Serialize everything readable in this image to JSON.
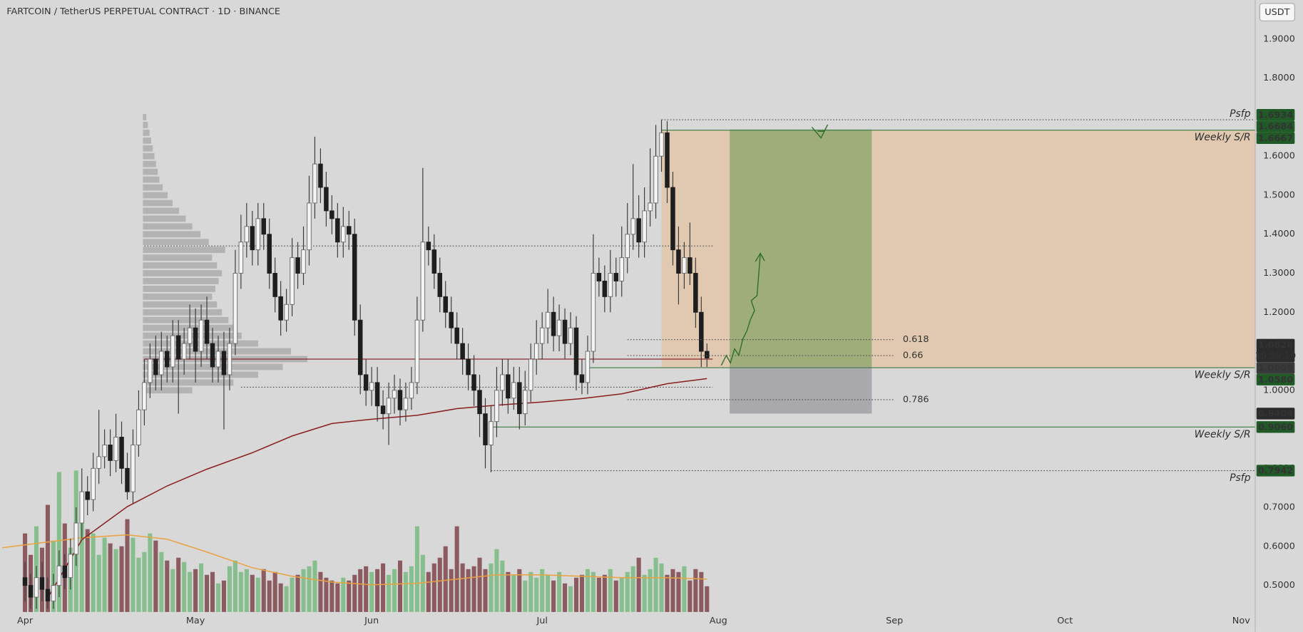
{
  "chart_data": {
    "type": "candlestick",
    "title": "FARTCOIN / TetherUS PERPETUAL CONTRACT · 1D · BINANCE",
    "currency": "USDT",
    "xlim": [
      -4.4,
      216.4
    ],
    "xticks": [
      {
        "value": 0,
        "label": "Apr"
      },
      {
        "value": 30,
        "label": "May"
      },
      {
        "value": 61,
        "label": "Jun"
      },
      {
        "value": 91,
        "label": "Jul"
      },
      {
        "value": 122,
        "label": "Aug"
      },
      {
        "value": 153,
        "label": "Sep"
      },
      {
        "value": 183,
        "label": "Oct"
      },
      {
        "value": 214,
        "label": "Nov"
      }
    ],
    "ylim": [
      0.432,
      2.0
    ],
    "yticks": [
      {
        "value": 0.5,
        "label": "0.5000"
      },
      {
        "value": 0.6,
        "label": "0.6000"
      },
      {
        "value": 0.7,
        "label": "0.7000"
      },
      {
        "value": 0.8,
        "label": "0.8000"
      },
      {
        "value": 0.9,
        "label": "0.9000"
      },
      {
        "value": 1.0,
        "label": "1.0000"
      },
      {
        "value": 1.1,
        "label": "1.1000"
      },
      {
        "value": 1.2,
        "label": "1.2000"
      },
      {
        "value": 1.3,
        "label": "1.3000"
      },
      {
        "value": 1.4,
        "label": "1.4000"
      },
      {
        "value": 1.5,
        "label": "1.5000"
      },
      {
        "value": 1.6,
        "label": "1.6000"
      },
      {
        "value": 1.7,
        "label": "1.7000"
      },
      {
        "value": 1.8,
        "label": "1.8000"
      },
      {
        "value": 1.9,
        "label": "1.9000"
      }
    ],
    "grid": false,
    "candles": {
      "up_color": "#f4f4f4",
      "down_color": "#1e1e1e",
      "wick_color": "#3a3a3a",
      "open": [
        0.52,
        0.5,
        0.47,
        0.52,
        0.49,
        0.46,
        0.5,
        0.55,
        0.52,
        0.58,
        0.66,
        0.74,
        0.72,
        0.8,
        0.83,
        0.86,
        0.82,
        0.88,
        0.8,
        0.74,
        0.86,
        0.95,
        1.02,
        1.08,
        1.04,
        1.1,
        1.06,
        1.14,
        1.08,
        1.12,
        1.16,
        1.1,
        1.18,
        1.12,
        1.06,
        1.1,
        1.04,
        1.12,
        1.3,
        1.38,
        1.42,
        1.36,
        1.44,
        1.4,
        1.3,
        1.24,
        1.18,
        1.22,
        1.34,
        1.3,
        1.36,
        1.48,
        1.58,
        1.52,
        1.46,
        1.44,
        1.38,
        1.42,
        1.4,
        1.18,
        1.04,
        1.0,
        1.02,
        0.96,
        0.94,
        0.98,
        1.0,
        0.95,
        0.98,
        1.02,
        1.18,
        1.38,
        1.36,
        1.3,
        1.24,
        1.2,
        1.16,
        1.12,
        1.08,
        1.04,
        1.0,
        0.94,
        0.86,
        0.92,
        1.0,
        1.04,
        0.98,
        1.02,
        0.94,
        1.0,
        1.08,
        1.12,
        1.16,
        1.2,
        1.14,
        1.18,
        1.12,
        1.16,
        1.04,
        1.02,
        1.1,
        1.3,
        1.28,
        1.24,
        1.3,
        1.28,
        1.34,
        1.4,
        1.44,
        1.38,
        1.46,
        1.48,
        1.6,
        1.66,
        1.52,
        1.36,
        1.3,
        1.34,
        1.3,
        1.2,
        1.1
      ],
      "high": [
        0.56,
        0.53,
        0.55,
        0.56,
        0.52,
        0.53,
        0.59,
        0.58,
        0.62,
        0.7,
        0.8,
        0.78,
        0.84,
        0.95,
        0.9,
        0.9,
        0.94,
        0.92,
        0.84,
        0.9,
        1.0,
        1.08,
        1.12,
        1.14,
        1.15,
        1.14,
        1.18,
        1.18,
        1.16,
        1.22,
        1.21,
        1.22,
        1.24,
        1.16,
        1.14,
        1.15,
        1.16,
        1.36,
        1.45,
        1.48,
        1.46,
        1.48,
        1.48,
        1.44,
        1.34,
        1.28,
        1.26,
        1.39,
        1.38,
        1.42,
        1.55,
        1.65,
        1.62,
        1.56,
        1.5,
        1.48,
        1.47,
        1.46,
        1.44,
        1.22,
        1.08,
        1.06,
        1.06,
        1.0,
        1.02,
        1.04,
        1.03,
        1.02,
        1.06,
        1.24,
        1.57,
        1.42,
        1.4,
        1.34,
        1.28,
        1.24,
        1.2,
        1.16,
        1.12,
        1.09,
        1.04,
        0.98,
        0.96,
        1.06,
        1.08,
        1.08,
        1.06,
        1.06,
        1.05,
        1.12,
        1.18,
        1.2,
        1.26,
        1.24,
        1.22,
        1.21,
        1.2,
        1.19,
        1.08,
        1.14,
        1.4,
        1.34,
        1.32,
        1.36,
        1.34,
        1.42,
        1.48,
        1.58,
        1.5,
        1.52,
        1.62,
        1.68,
        1.6934,
        1.69,
        1.56,
        1.42,
        1.38,
        1.43,
        1.34,
        1.24,
        1.12
      ],
      "low": [
        0.46,
        0.44,
        0.44,
        0.46,
        0.44,
        0.44,
        0.47,
        0.49,
        0.49,
        0.55,
        0.62,
        0.68,
        0.69,
        0.76,
        0.8,
        0.78,
        0.79,
        0.76,
        0.72,
        0.71,
        0.83,
        0.91,
        0.98,
        1.0,
        1.0,
        1.02,
        1.02,
        0.94,
        1.04,
        1.08,
        1.02,
        1.06,
        1.08,
        1.02,
        1.02,
        0.9,
        1.0,
        1.09,
        1.26,
        1.34,
        1.32,
        1.32,
        1.36,
        1.26,
        1.2,
        1.14,
        1.15,
        1.19,
        1.26,
        1.27,
        1.32,
        1.44,
        1.48,
        1.42,
        1.4,
        1.34,
        1.34,
        1.36,
        1.14,
        0.99,
        0.96,
        0.96,
        0.92,
        0.9,
        0.86,
        0.94,
        0.91,
        0.92,
        0.95,
        0.99,
        1.15,
        1.32,
        1.26,
        1.2,
        1.16,
        1.12,
        1.08,
        1.04,
        1.0,
        0.96,
        0.88,
        0.8,
        0.79,
        0.88,
        0.96,
        0.94,
        0.95,
        0.9,
        0.91,
        0.97,
        1.04,
        1.08,
        1.12,
        1.1,
        1.1,
        1.08,
        1.09,
        1.0,
        0.99,
        0.99,
        1.07,
        1.24,
        1.2,
        1.2,
        1.24,
        1.24,
        1.3,
        1.36,
        1.34,
        1.34,
        1.42,
        1.44,
        1.56,
        1.48,
        1.32,
        1.22,
        1.26,
        1.27,
        1.16,
        1.06,
        1.06
      ],
      "close": [
        0.5,
        0.47,
        0.52,
        0.49,
        0.46,
        0.5,
        0.55,
        0.52,
        0.58,
        0.66,
        0.74,
        0.72,
        0.8,
        0.83,
        0.86,
        0.82,
        0.88,
        0.8,
        0.74,
        0.86,
        0.95,
        1.02,
        1.08,
        1.04,
        1.1,
        1.06,
        1.14,
        1.08,
        1.12,
        1.16,
        1.1,
        1.18,
        1.12,
        1.06,
        1.1,
        1.04,
        1.12,
        1.3,
        1.38,
        1.42,
        1.36,
        1.44,
        1.4,
        1.3,
        1.24,
        1.18,
        1.22,
        1.34,
        1.3,
        1.36,
        1.48,
        1.58,
        1.52,
        1.46,
        1.44,
        1.38,
        1.42,
        1.4,
        1.18,
        1.04,
        1.0,
        1.02,
        0.96,
        0.94,
        0.98,
        1.0,
        0.95,
        0.98,
        1.02,
        1.18,
        1.38,
        1.36,
        1.3,
        1.24,
        1.2,
        1.16,
        1.12,
        1.08,
        1.04,
        1.0,
        0.94,
        0.86,
        0.92,
        1.0,
        1.04,
        0.98,
        1.02,
        0.94,
        1.0,
        1.08,
        1.12,
        1.16,
        1.2,
        1.14,
        1.18,
        1.12,
        1.16,
        1.04,
        1.02,
        1.1,
        1.3,
        1.28,
        1.24,
        1.3,
        1.28,
        1.34,
        1.4,
        1.44,
        1.38,
        1.46,
        1.48,
        1.6,
        1.66,
        1.52,
        1.36,
        1.3,
        1.34,
        1.3,
        1.2,
        1.1,
        1.0828
      ]
    },
    "volume": {
      "vlim": [
        0,
        100
      ],
      "up_color": "#86bf8d",
      "down_color": "#8b5b60",
      "values": [
        55,
        40,
        60,
        45,
        75,
        50,
        98,
        62,
        45,
        99,
        70,
        58,
        55,
        40,
        52,
        48,
        44,
        46,
        65,
        52,
        38,
        42,
        55,
        50,
        42,
        36,
        30,
        38,
        35,
        28,
        30,
        34,
        26,
        28,
        20,
        22,
        32,
        36,
        28,
        30,
        26,
        24,
        30,
        22,
        28,
        20,
        18,
        24,
        26,
        30,
        32,
        36,
        28,
        24,
        22,
        20,
        24,
        22,
        26,
        30,
        32,
        28,
        30,
        34,
        26,
        30,
        36,
        28,
        32,
        60,
        40,
        28,
        34,
        38,
        46,
        30,
        60,
        34,
        30,
        32,
        38,
        30,
        34,
        44,
        36,
        28,
        26,
        30,
        22,
        28,
        24,
        30,
        26,
        22,
        28,
        20,
        18,
        24,
        26,
        30,
        28,
        24,
        26,
        30,
        22,
        24,
        28,
        32,
        38,
        26,
        30,
        38,
        34,
        26,
        30,
        28,
        32,
        22,
        30,
        28,
        18
      ]
    },
    "volume_ma": {
      "color": "#e9a23f",
      "x": [
        -4,
        10,
        18,
        25,
        32,
        40,
        47,
        54,
        61,
        69,
        76,
        83,
        91,
        98,
        105,
        113,
        120
      ],
      "values": [
        45,
        52,
        54,
        51,
        42,
        31,
        25,
        21,
        19,
        20,
        23,
        26,
        26,
        25,
        24,
        24,
        23
      ]
    },
    "ema": {
      "color": "#8b1e1e",
      "x": [
        4,
        10,
        18,
        25,
        32,
        40,
        47,
        54,
        61,
        69,
        76,
        83,
        91,
        98,
        105,
        113,
        120
      ],
      "values": [
        0.468,
        0.617,
        0.702,
        0.755,
        0.798,
        0.84,
        0.883,
        0.915,
        0.926,
        0.936,
        0.953,
        0.962,
        0.97,
        0.979,
        0.991,
        1.017,
        1.03
      ]
    },
    "profile": {
      "color": "rgba(135,135,135,0.45)",
      "prices": [
        1.0,
        1.02,
        1.04,
        1.06,
        1.08,
        1.1,
        1.12,
        1.14,
        1.16,
        1.18,
        1.2,
        1.22,
        1.24,
        1.26,
        1.28,
        1.3,
        1.32,
        1.34,
        1.36,
        1.38,
        1.4,
        1.42,
        1.44,
        1.46,
        1.48,
        1.5,
        1.52,
        1.54,
        1.56,
        1.58,
        1.6,
        1.62,
        1.64,
        1.66,
        1.68,
        1.7
      ],
      "values": [
        30,
        55,
        70,
        85,
        100,
        90,
        70,
        60,
        55,
        52,
        48,
        45,
        42,
        44,
        46,
        48,
        45,
        42,
        50,
        40,
        35,
        30,
        26,
        22,
        18,
        15,
        12,
        10,
        9,
        8,
        7,
        6,
        5,
        4,
        3,
        2
      ]
    },
    "zones": [
      {
        "top": 1.6667,
        "bottom": 1.058,
        "from": 112,
        "color": "rgba(240,170,95,0.33)"
      }
    ],
    "position": {
      "entry": 1.0609,
      "target": 1.6684,
      "stop": 0.9404,
      "from": 124,
      "to": 149,
      "profit_color": "rgba(80,140,60,0.45)",
      "loss_color": "rgba(120,120,130,0.5)"
    },
    "levels": [
      {
        "price": 1.6934,
        "from": 112,
        "style": "dotted",
        "color": "#555555",
        "label": "Psfp",
        "label_pos": "above"
      },
      {
        "price": 1.6667,
        "from": 112,
        "style": "solid",
        "color": "#3d7a45",
        "label": "Weekly S/R",
        "label_pos": "below"
      },
      {
        "price": 1.37,
        "from": 21,
        "to": 121,
        "style": "dotted",
        "color": "#555555"
      },
      {
        "price": 1.08,
        "from": 21,
        "to": 121,
        "style": "solid",
        "color": "#8b2a2a"
      },
      {
        "price": 1.058,
        "from": 99,
        "style": "solid",
        "color": "#3d7a45",
        "label": "Weekly S/R",
        "label_pos": "below"
      },
      {
        "price": 1.008,
        "from": 38,
        "to": 121,
        "style": "dotted",
        "color": "#555555"
      },
      {
        "price": 0.906,
        "from": 82,
        "style": "solid",
        "color": "#3d7a45",
        "label": "Weekly S/R",
        "label_pos": "below"
      },
      {
        "price": 0.7942,
        "from": 82,
        "style": "dotted",
        "color": "#555555",
        "label": "Psfp",
        "label_pos": "below"
      }
    ],
    "fib_color": "#555555",
    "fib_from": 106,
    "fib_to": 153,
    "fib_levels": [
      {
        "ratio": 0.618,
        "price": 1.1298
      },
      {
        "ratio": 0.66,
        "price": 1.089
      },
      {
        "ratio": 0.786,
        "price": 0.976
      }
    ],
    "price_labels": [
      {
        "value": 1.6934,
        "label": "1.6934",
        "color": "#1f5a27"
      },
      {
        "value": 1.6684,
        "label": "1.6684",
        "color": "#1f5a27"
      },
      {
        "value": 1.6667,
        "label": "1.6667",
        "color": "#1f5a27"
      },
      {
        "value": 1.0828,
        "label": "1.0828",
        "color": "#2b2b2b",
        "countdown": "19:59:19"
      },
      {
        "value": 1.0609,
        "label": "1.0609",
        "color": "#3a3a3a"
      },
      {
        "value": 1.058,
        "label": "1.0580",
        "color": "#1f5a27"
      },
      {
        "value": 0.9404,
        "label": "0.9404",
        "color": "#2b2b2b"
      },
      {
        "value": 0.906,
        "label": "0.9060",
        "color": "#1f5a27"
      },
      {
        "value": 0.7942,
        "label": "0.7942",
        "color": "#1f5a27"
      }
    ]
  }
}
